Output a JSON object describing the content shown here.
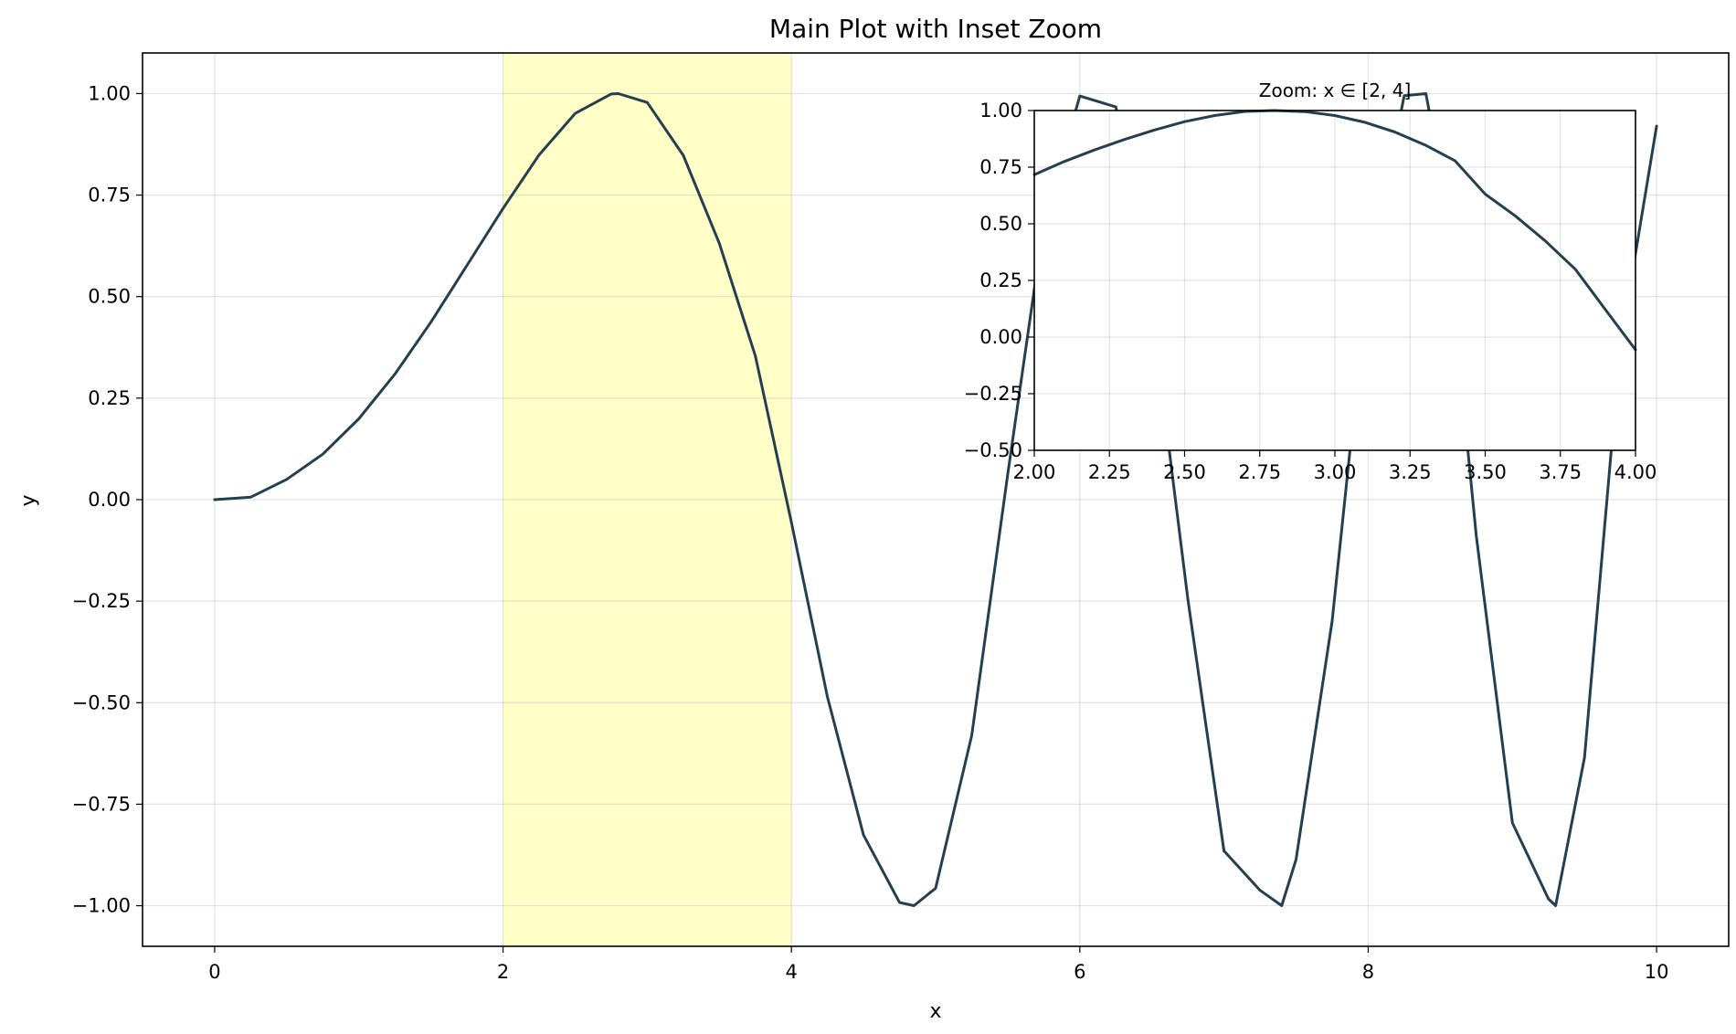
{
  "chart_data": [
    {
      "type": "line",
      "title": "Main Plot with Inset Zoom",
      "xlabel": "x",
      "ylabel": "y",
      "xlim": [
        -0.5,
        10.5
      ],
      "ylim": [
        -1.1,
        1.1
      ],
      "xticks": [
        0,
        2,
        4,
        6,
        8,
        10
      ],
      "xtick_labels": [
        "0",
        "2",
        "4",
        "6",
        "8",
        "10"
      ],
      "yticks": [
        1.0,
        0.75,
        0.5,
        0.25,
        0.0,
        -0.25,
        -0.5,
        -0.75,
        -1.0
      ],
      "ytick_labels": [
        "1.00",
        "0.75",
        "0.50",
        "0.25",
        "0.00",
        "−0.25",
        "−0.50",
        "−0.75",
        "−1.00"
      ],
      "grid": true,
      "highlight_span": {
        "x": [
          2,
          4
        ],
        "color": "#ffff99"
      },
      "series": [
        {
          "color": "#243f4f",
          "x": [
            0,
            0.25,
            0.5,
            0.75,
            1.0,
            1.25,
            1.5,
            1.75,
            2.0,
            2.25,
            2.5,
            2.75,
            2.8,
            3.0,
            3.25,
            3.5,
            3.75,
            4.0,
            4.25,
            4.5,
            4.75,
            4.85,
            5.0,
            5.25,
            5.5,
            5.75,
            6.0,
            6.25,
            6.5,
            6.75,
            7.0,
            7.25,
            7.4,
            7.5,
            7.75,
            8.0,
            8.25,
            8.4,
            8.5,
            8.75,
            9.0,
            9.25,
            9.3,
            9.5,
            9.75,
            10.0
          ],
          "y": [
            0.0,
            0.006,
            0.05,
            0.112,
            0.199,
            0.309,
            0.437,
            0.577,
            0.717,
            0.849,
            0.951,
            0.999,
            1.0,
            0.978,
            0.848,
            0.631,
            0.354,
            -0.056,
            -0.486,
            -0.826,
            -0.992,
            -1.0,
            -0.957,
            -0.581,
            0.062,
            0.681,
            0.994,
            0.967,
            0.463,
            -0.247,
            -0.865,
            -0.962,
            -1.0,
            -0.886,
            -0.299,
            0.552,
            0.995,
            1.0,
            0.811,
            -0.09,
            -0.796,
            -0.983,
            -1.0,
            -0.635,
            0.383,
            0.92
          ]
        }
      ]
    },
    {
      "type": "line",
      "title": "Zoom: x ∈ [2, 4]",
      "xlim": [
        2,
        4
      ],
      "ylim": [
        -0.5,
        1.0
      ],
      "xticks": [
        2.0,
        2.25,
        2.5,
        2.75,
        3.0,
        3.25,
        3.5,
        3.75,
        4.0
      ],
      "xtick_labels": [
        "2.00",
        "2.25",
        "2.50",
        "2.75",
        "3.00",
        "3.25",
        "3.50",
        "3.75",
        "4.00"
      ],
      "yticks": [
        1.0,
        0.75,
        0.5,
        0.25,
        0.0,
        -0.25,
        -0.5
      ],
      "ytick_labels": [
        "1.00",
        "0.75",
        "0.50",
        "0.25",
        "0.00",
        "−0.25",
        "−0.50"
      ],
      "grid": true,
      "series": [
        {
          "color": "#243f4f",
          "x": [
            2.0,
            2.1,
            2.2,
            2.3,
            2.4,
            2.5,
            2.6,
            2.7,
            2.8,
            2.9,
            3.0,
            3.1,
            3.2,
            3.3,
            3.4,
            3.5,
            3.6,
            3.7,
            3.8,
            3.9,
            4.0
          ],
          "y": [
            0.717,
            0.775,
            0.826,
            0.872,
            0.914,
            0.951,
            0.978,
            0.996,
            1.0,
            0.995,
            0.978,
            0.948,
            0.905,
            0.848,
            0.778,
            0.631,
            0.535,
            0.424,
            0.299,
            0.121,
            -0.056
          ]
        }
      ]
    }
  ]
}
